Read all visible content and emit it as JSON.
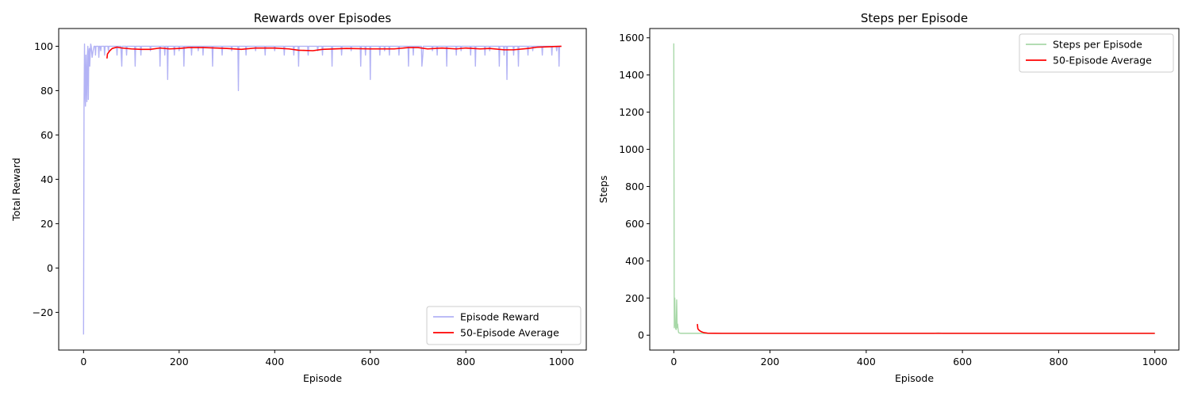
{
  "chart_data": [
    {
      "type": "line",
      "title": "Rewards over Episodes",
      "xlabel": "Episode",
      "ylabel": "Total Reward",
      "xlim": [
        -52,
        1052
      ],
      "ylim": [
        -37,
        108
      ],
      "xticks": [
        0,
        200,
        400,
        600,
        800,
        1000
      ],
      "yticks": [
        -20,
        0,
        20,
        40,
        60,
        80,
        100
      ],
      "ytick_labels": [
        "−20",
        "0",
        "20",
        "40",
        "60",
        "80",
        "100"
      ],
      "grid": false,
      "legend_position": "lower-right",
      "series": [
        {
          "name": "Episode Reward",
          "color": "#b3b3f5",
          "base_value": 100,
          "x": [
            0,
            1,
            2,
            3,
            4,
            5,
            6,
            7,
            8,
            9,
            10,
            11,
            12,
            13,
            14,
            15,
            16,
            18,
            20,
            22,
            25,
            28,
            32,
            36,
            40,
            44,
            48,
            52,
            60,
            70,
            78,
            80,
            84,
            90,
            100,
            108,
            112,
            120,
            130,
            140,
            150,
            160,
            165,
            170,
            176,
            180,
            190,
            200,
            210,
            220,
            226,
            230,
            240,
            250,
            260,
            270,
            280,
            290,
            300,
            310,
            324,
            330,
            340,
            350,
            360,
            370,
            380,
            390,
            400,
            410,
            420,
            430,
            440,
            450,
            460,
            470,
            480,
            490,
            500,
            510,
            520,
            530,
            540,
            550,
            560,
            570,
            580,
            590,
            597,
            600,
            610,
            620,
            630,
            640,
            650,
            660,
            670,
            680,
            690,
            700,
            708,
            710,
            720,
            730,
            740,
            750,
            760,
            770,
            780,
            790,
            800,
            810,
            820,
            830,
            840,
            850,
            860,
            870,
            880,
            886,
            890,
            900,
            910,
            920,
            930,
            940,
            950,
            960,
            970,
            980,
            990,
            995,
            1000
          ],
          "values": [
            -30,
            72,
            101,
            80,
            73,
            96,
            84,
            75,
            96,
            100,
            76,
            97,
            99,
            91,
            97,
            101,
            100,
            95,
            98,
            100,
            96,
            100,
            95,
            98,
            100,
            96,
            100,
            98,
            100,
            96,
            100,
            91,
            100,
            96,
            100,
            91,
            100,
            96,
            100,
            98,
            100,
            91,
            100,
            96,
            85,
            100,
            96,
            98,
            91,
            100,
            96,
            100,
            98,
            96,
            100,
            91,
            100,
            96,
            100,
            98,
            80,
            100,
            96,
            100,
            98,
            100,
            96,
            100,
            98,
            100,
            96,
            100,
            96,
            91,
            100,
            96,
            100,
            98,
            96,
            100,
            91,
            100,
            96,
            100,
            98,
            100,
            91,
            96,
            100,
            85,
            100,
            96,
            98,
            96,
            100,
            96,
            100,
            91,
            96,
            100,
            91,
            96,
            100,
            98,
            96,
            100,
            91,
            100,
            96,
            98,
            100,
            96,
            91,
            100,
            96,
            98,
            100,
            91,
            96,
            85,
            100,
            96,
            91,
            100,
            96,
            98,
            100,
            96,
            100,
            96,
            98,
            91,
            100
          ]
        },
        {
          "name": "50-Episode Average",
          "color": "#ff0000",
          "x": [
            49,
            50,
            55,
            60,
            70,
            80,
            100,
            120,
            140,
            160,
            180,
            200,
            220,
            250,
            280,
            300,
            330,
            360,
            400,
            430,
            450,
            480,
            500,
            550,
            600,
            650,
            680,
            700,
            720,
            750,
            780,
            800,
            830,
            850,
            880,
            900,
            930,
            950,
            1000
          ],
          "values": [
            94.5,
            96.5,
            98,
            99,
            99.6,
            99.2,
            98.8,
            98.6,
            98.6,
            99.2,
            98.8,
            99,
            99.4,
            99.4,
            99.2,
            99,
            98.6,
            99.2,
            99.2,
            98.8,
            98.2,
            98,
            98.6,
            99,
            98.8,
            98.8,
            99.4,
            99.4,
            98.8,
            99.2,
            98.8,
            99.2,
            98.8,
            99,
            98.4,
            98.4,
            99,
            99.6,
            100
          ]
        }
      ]
    },
    {
      "type": "line",
      "title": "Steps per Episode",
      "xlabel": "Episode",
      "ylabel": "Steps",
      "xlim": [
        -50,
        1050
      ],
      "ylim": [
        -80,
        1650
      ],
      "xticks": [
        0,
        200,
        400,
        600,
        800,
        1000
      ],
      "yticks": [
        0,
        200,
        400,
        600,
        800,
        1000,
        1200,
        1400,
        1600
      ],
      "grid": false,
      "legend_position": "top-right",
      "series": [
        {
          "name": "Steps per Episode",
          "color": "#a8d8a8",
          "x": [
            0,
            1,
            2,
            3,
            4,
            5,
            6,
            7,
            8,
            9,
            10,
            11,
            12,
            14,
            16,
            20,
            30,
            40,
            50,
            60,
            100,
            200,
            300,
            400,
            500,
            540,
            550,
            560,
            600,
            700,
            800,
            900,
            1000
          ],
          "values": [
            1570,
            40,
            200,
            60,
            35,
            30,
            190,
            40,
            60,
            30,
            15,
            12,
            12,
            10,
            10,
            10,
            10,
            10,
            10,
            10,
            10,
            10,
            10,
            10,
            10,
            10,
            12,
            10,
            10,
            10,
            10,
            10,
            10
          ]
        },
        {
          "name": "50-Episode Average",
          "color": "#ff0000",
          "x": [
            49,
            50,
            52,
            55,
            58,
            62,
            70,
            100,
            200,
            300,
            400,
            500,
            600,
            700,
            800,
            900,
            1000
          ],
          "values": [
            60,
            35,
            28,
            22,
            18,
            14,
            11,
            10,
            10,
            10,
            10,
            10,
            10,
            10,
            10,
            10,
            10
          ]
        }
      ]
    }
  ]
}
